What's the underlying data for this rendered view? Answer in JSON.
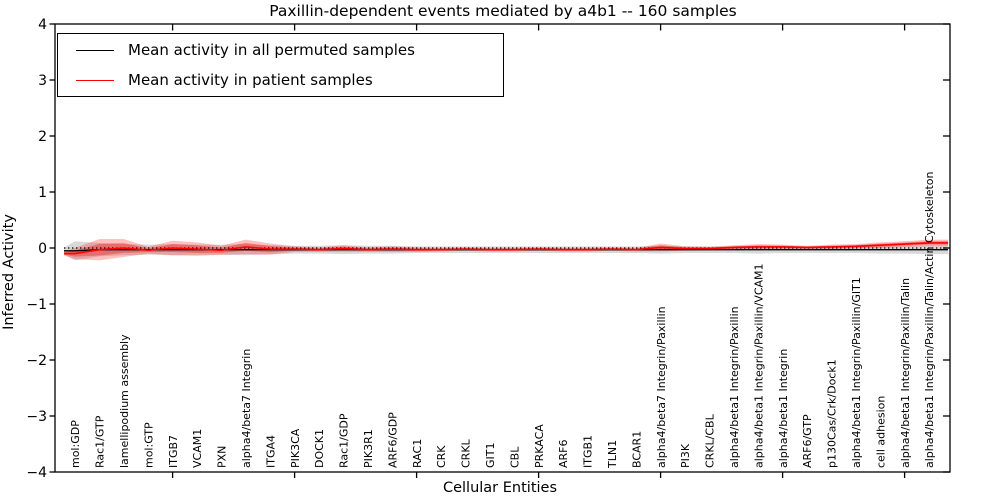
{
  "title": "Paxillin-dependent events mediated by a4b1 -- 160 samples",
  "legend": {
    "items": [
      {
        "label": "Mean activity in all permuted samples",
        "color": "#000000"
      },
      {
        "label": "Mean activity in patient samples",
        "color": "#ff0000"
      }
    ]
  },
  "chart_data": {
    "type": "line",
    "title": "Paxillin-dependent events mediated by a4b1 -- 160 samples",
    "xlabel": "Cellular Entities",
    "ylabel": "Inferred Activity",
    "ylim": [
      -4,
      4
    ],
    "yticks": [
      4,
      3,
      2,
      1,
      0,
      -1,
      -2,
      -3,
      -4
    ],
    "x_major_tick_indices": [
      4,
      9,
      14,
      19,
      24,
      29,
      34
    ],
    "grid": false,
    "legend_position": "upper left",
    "zero_line": {
      "style": "dotted",
      "value": 0,
      "color": "#000000"
    },
    "categories": [
      "mol:GDP",
      "Rac1/GTP",
      "lamellipodium assembly",
      "mol:GTP",
      "ITGB7",
      "VCAM1",
      "PXN",
      "alpha4/beta7 Integrin",
      "ITGA4",
      "PIK3CA",
      "DOCK1",
      "Rac1/GDP",
      "PIK3R1",
      "ARF6/GDP",
      "RAC1",
      "CRK",
      "CRKL",
      "GIT1",
      "CBL",
      "PRKACA",
      "ARF6",
      "ITGB1",
      "TLN1",
      "BCAR1",
      "alpha4/beta7 Integrin/Paxillin",
      "PI3K",
      "CRKL/CBL",
      "alpha4/beta1 Integrin/Paxillin",
      "alpha4/beta1 Integrin/Paxillin/VCAM1",
      "alpha4/beta1 Integrin",
      "ARF6/GTP",
      "p130Cas/Crk/Dock1",
      "alpha4/beta1 Integrin/Paxillin/GIT1",
      "cell adhesion",
      "alpha4/beta1 Integrin/Paxillin/Talin",
      "alpha4/beta1 Integrin/Paxillin/Talin/Actin Cytoskeleton"
    ],
    "series": [
      {
        "name": "Mean activity in all permuted samples",
        "color": "#000000",
        "values": [
          -0.05,
          -0.03,
          -0.03,
          -0.03,
          -0.03,
          -0.03,
          -0.03,
          -0.03,
          -0.03,
          -0.03,
          -0.03,
          -0.03,
          -0.03,
          -0.03,
          -0.03,
          -0.03,
          -0.03,
          -0.03,
          -0.03,
          -0.03,
          -0.03,
          -0.03,
          -0.03,
          -0.03,
          -0.03,
          -0.03,
          -0.03,
          -0.03,
          -0.03,
          -0.03,
          -0.03,
          -0.03,
          -0.03,
          -0.03,
          -0.03,
          -0.03
        ],
        "band_half_widths": [
          0.17,
          0.12,
          0.1,
          0.09,
          0.1,
          0.09,
          0.09,
          0.1,
          0.08,
          0.07,
          0.07,
          0.08,
          0.07,
          0.07,
          0.06,
          0.06,
          0.06,
          0.06,
          0.06,
          0.06,
          0.06,
          0.06,
          0.06,
          0.06,
          0.07,
          0.06,
          0.06,
          0.06,
          0.07,
          0.06,
          0.06,
          0.06,
          0.06,
          0.07,
          0.07,
          0.08
        ],
        "band_color": "rgba(0,0,0,0.15)"
      },
      {
        "name": "Mean activity in patient samples",
        "color": "#ff0000",
        "values": [
          -0.1,
          -0.03,
          0.0,
          -0.04,
          0.0,
          -0.02,
          -0.04,
          0.02,
          -0.02,
          -0.02,
          -0.03,
          -0.01,
          -0.03,
          -0.02,
          -0.03,
          -0.03,
          -0.02,
          -0.03,
          -0.03,
          -0.02,
          -0.03,
          -0.03,
          -0.02,
          -0.03,
          0.01,
          -0.01,
          -0.01,
          0.01,
          0.02,
          0.02,
          0.01,
          0.02,
          0.03,
          0.05,
          0.07,
          0.09
        ],
        "band_half_widths": [
          0.1,
          0.19,
          0.16,
          0.06,
          0.13,
          0.12,
          0.08,
          0.13,
          0.1,
          0.05,
          0.04,
          0.06,
          0.04,
          0.05,
          0.04,
          0.03,
          0.03,
          0.03,
          0.03,
          0.03,
          0.03,
          0.03,
          0.03,
          0.03,
          0.07,
          0.04,
          0.03,
          0.04,
          0.05,
          0.04,
          0.03,
          0.04,
          0.04,
          0.05,
          0.05,
          0.06
        ],
        "band_color": "rgba(255,30,30,0.28)",
        "band_inner_color": "rgba(240,20,20,0.38)"
      }
    ]
  }
}
